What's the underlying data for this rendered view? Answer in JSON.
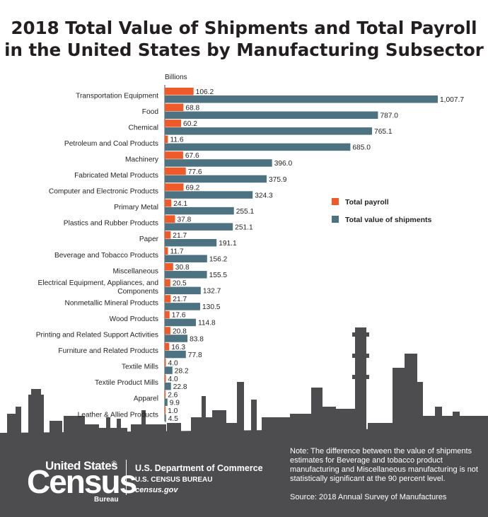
{
  "title": {
    "line1": "2018 Total Value of Shipments and Total Payroll",
    "line2": "in the United States by Manufacturing Subsector"
  },
  "chart_data": {
    "type": "bar",
    "orientation": "horizontal",
    "unit_label": "Billions",
    "categories": [
      "Transportation Equipment",
      "Food",
      "Chemical",
      "Petroleum and Coal Products",
      "Machinery",
      "Fabricated Metal Products",
      "Computer and Electronic Products",
      "Primary Metal",
      "Plastics and Rubber Products",
      "Paper",
      "Beverage and Tobacco Products",
      "Miscellaneous",
      "Electrical Equipment, Appliances, and Components",
      "Nonmetallic Mineral Products",
      "Wood Products",
      "Printing and Related Support Activities",
      "Furniture and Related Products",
      "Textile Mills",
      "Textile Product Mills",
      "Apparel",
      "Leather & Allied Products"
    ],
    "series": [
      {
        "name": "Total payroll",
        "color": "#f05a28",
        "values": [
          106.2,
          68.8,
          60.2,
          11.6,
          67.6,
          77.6,
          69.2,
          24.1,
          37.8,
          21.7,
          11.7,
          30.8,
          20.5,
          21.7,
          17.6,
          20.8,
          16.3,
          4.0,
          4.0,
          2.6,
          1.0
        ],
        "labels": [
          "106.2",
          "68.8",
          "60.2",
          "11.6",
          "67.6",
          "77.6",
          "69.2",
          "24.1",
          "37.8",
          "21.7",
          "11.7",
          "30.8",
          "20.5",
          "21.7",
          "17.6",
          "20.8",
          "16.3",
          "4.0",
          "4.0",
          "2.6",
          "1.0"
        ]
      },
      {
        "name": "Total value of shipments",
        "color": "#4d7383",
        "values": [
          1007.7,
          787.0,
          765.1,
          685.0,
          396.0,
          375.9,
          324.3,
          255.1,
          251.1,
          191.1,
          156.2,
          155.5,
          132.7,
          130.5,
          114.8,
          83.8,
          77.8,
          28.2,
          22.8,
          9.9,
          4.5
        ],
        "labels": [
          "1,007.7",
          "787.0",
          "765.1",
          "685.0",
          "396.0",
          "375.9",
          "324.3",
          "255.1",
          "251.1",
          "191.1",
          "156.2",
          "155.5",
          "132.7",
          "130.5",
          "114.8",
          "83.8",
          "77.8",
          "28.2",
          "22.8",
          "9.9",
          "4.5"
        ]
      }
    ],
    "legend_position": "right",
    "grid": false,
    "xlim": [
      0,
      1007.7
    ]
  },
  "note": "Note: The difference between the value of shipments estimates for Beverage and tobacco product manufacturing and Miscellaneous manufacturing is not statistically significant at the 90 percent level.",
  "source": "Source: 2018 Annual Survey of Manufactures",
  "logo": {
    "top": "United States",
    "main": "Census",
    "registered": "®",
    "bureau": "Bureau"
  },
  "dept": "U.S. Department of Commerce",
  "bureau_name": "U.S. CENSUS BUREAU",
  "website": "census.gov",
  "colors": {
    "footer": "#4d4c4e",
    "skyline": "#4d4c4e",
    "title_text": "#231f20"
  }
}
